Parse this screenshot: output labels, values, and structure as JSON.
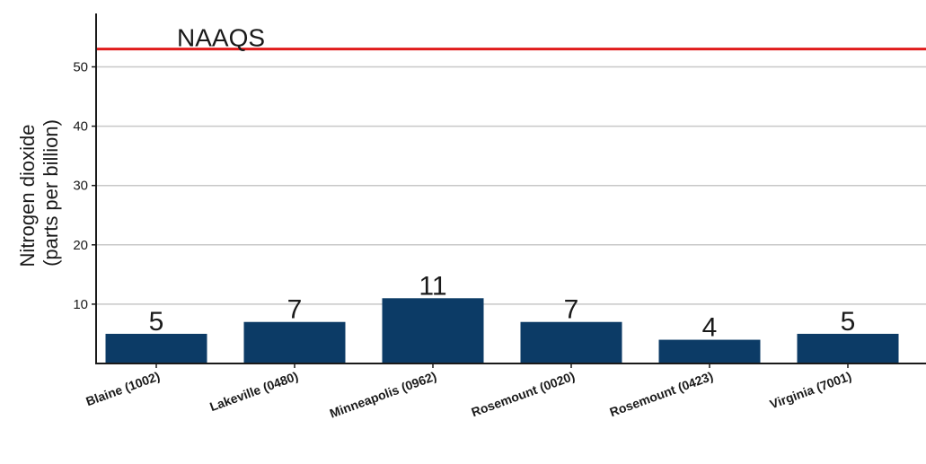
{
  "chart_data": {
    "type": "bar",
    "ylabel": [
      "Nitrogen dioxide",
      "(parts per billion)"
    ],
    "categories": [
      "Blaine (1002)",
      "Lakeville (0480)",
      "Minneapolis (0962)",
      "Rosemount (0020)",
      "Rosemount (0423)",
      "Virginia (7001)"
    ],
    "values": [
      5,
      7,
      11,
      7,
      4,
      5
    ],
    "data_labels": [
      "5",
      "7",
      "11",
      "7",
      "4",
      "5"
    ],
    "ylim": [
      0,
      59
    ],
    "yticks": [
      10,
      20,
      30,
      40,
      50
    ],
    "grid": "horizontal",
    "bar_color": "#0c3b66",
    "reference_line": {
      "label": "NAAQS",
      "value": 53,
      "color": "#e01b1b"
    }
  }
}
